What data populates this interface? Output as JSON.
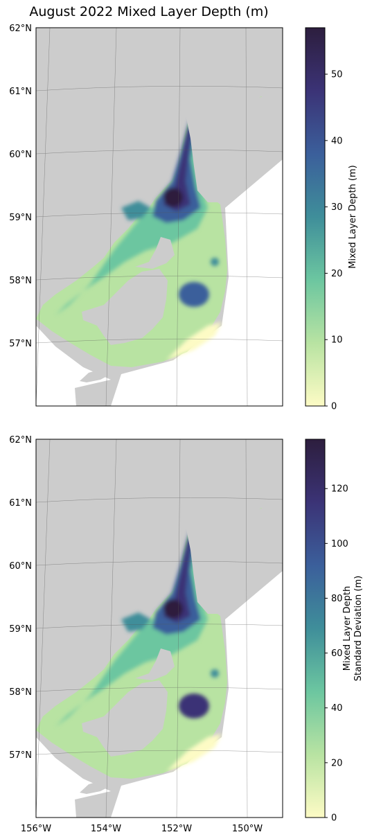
{
  "figure": {
    "title": "August 2022 Mixed Layer Depth (m)"
  },
  "lat_ticks": [
    "62°N",
    "61°N",
    "60°N",
    "59°N",
    "58°N",
    "57°N"
  ],
  "lon_ticks": [
    "156°W",
    "154°W",
    "152°W",
    "150°W"
  ],
  "panels": [
    {
      "colorbar_label_lines": [
        "Mixed Layer Depth (m)"
      ],
      "colorbar_ticks": [
        0,
        10,
        20,
        30,
        40,
        50
      ],
      "colorbar_max": 57,
      "show_lon_labels": false
    },
    {
      "colorbar_label_lines": [
        "Mixed Layer Depth",
        "Standard Deviation (m)"
      ],
      "colorbar_ticks": [
        0,
        20,
        40,
        60,
        80,
        100,
        120
      ],
      "colorbar_max": 138,
      "show_lon_labels": true
    }
  ],
  "colors": {
    "land": "#cccccc",
    "ocean_background": "#ffffff",
    "colormap": [
      "#fdfbc5",
      "#b8e3a2",
      "#6cc6a0",
      "#3f8e9a",
      "#3b5f9b",
      "#3b3376",
      "#2d1e3e"
    ]
  }
}
